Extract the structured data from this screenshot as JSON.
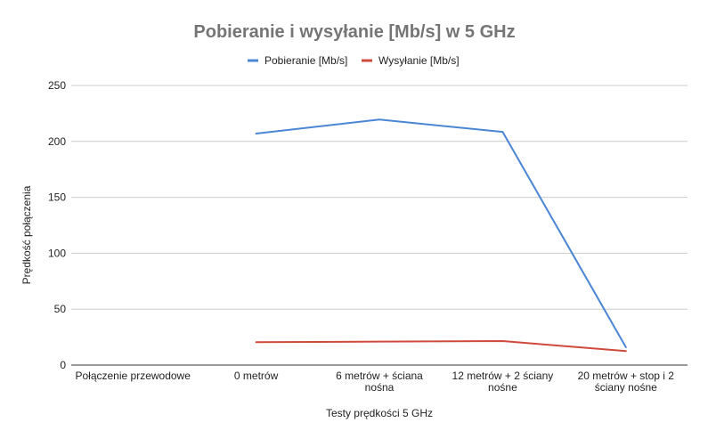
{
  "chart_data": {
    "type": "line",
    "title": "Pobieranie i wysyłanie [Mb/s] w 5 GHz",
    "xlabel": "Testy prędkości 5 GHz",
    "ylabel": "Prędkość połączenia",
    "ylim": [
      0,
      250
    ],
    "yticks": [
      "0",
      "50",
      "100",
      "150",
      "200",
      "250"
    ],
    "categories": [
      "Połączenie przewodowe",
      "0 metrów",
      "6 metrów + ściana nośna",
      "12 metrów + 2 ściany nośne",
      "20 metrów + stop i 2 ściany nośne"
    ],
    "category_lines": [
      [
        "Połączenie przewodowe"
      ],
      [
        "0 metrów"
      ],
      [
        "6 metrów + ściana",
        "nośna"
      ],
      [
        "12 metrów + 2 ściany",
        "nośne"
      ],
      [
        "20 metrów + stop i 2",
        "ściany nośne"
      ]
    ],
    "series": [
      {
        "name": "Pobieranie [Mb/s]",
        "color": "#4a86d4",
        "values": [
          null,
          207,
          219.5,
          208.5,
          16
        ]
      },
      {
        "name": "Wysyłanie [Mb/s]",
        "color": "#d04a3c",
        "values": [
          null,
          20.5,
          21,
          21.5,
          12.5
        ]
      }
    ],
    "legend_position": "top",
    "grid": true
  }
}
